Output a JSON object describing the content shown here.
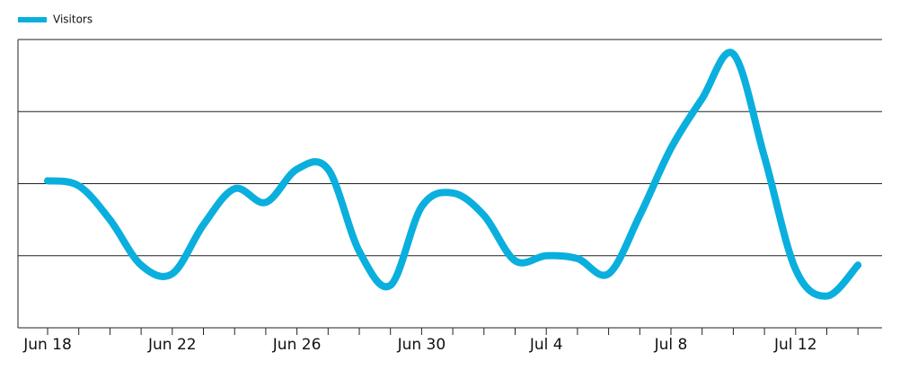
{
  "chart_data": {
    "type": "line",
    "categories": [
      "Jun 18",
      null,
      null,
      null,
      "Jun 22",
      null,
      null,
      null,
      "Jun 26",
      null,
      null,
      null,
      "Jun 30",
      null,
      null,
      null,
      "Jul 4",
      null,
      null,
      null,
      "Jul 8",
      null,
      null,
      null,
      "Jul 12",
      null,
      null
    ],
    "series": [
      {
        "name": "Visitors",
        "color": "#0aafde",
        "values": [
          2.04,
          1.97,
          1.5,
          0.87,
          0.75,
          1.43,
          1.93,
          1.74,
          2.2,
          2.2,
          1.06,
          0.59,
          1.68,
          1.87,
          1.56,
          0.93,
          1.0,
          0.96,
          0.75,
          1.56,
          2.49,
          3.18,
          3.8,
          2.37,
          0.81,
          0.44,
          0.87
        ]
      }
    ],
    "ylim": [
      0,
      4
    ],
    "ygrid": [
      1,
      2,
      3,
      4
    ],
    "grid": true,
    "legend": "top-left"
  }
}
